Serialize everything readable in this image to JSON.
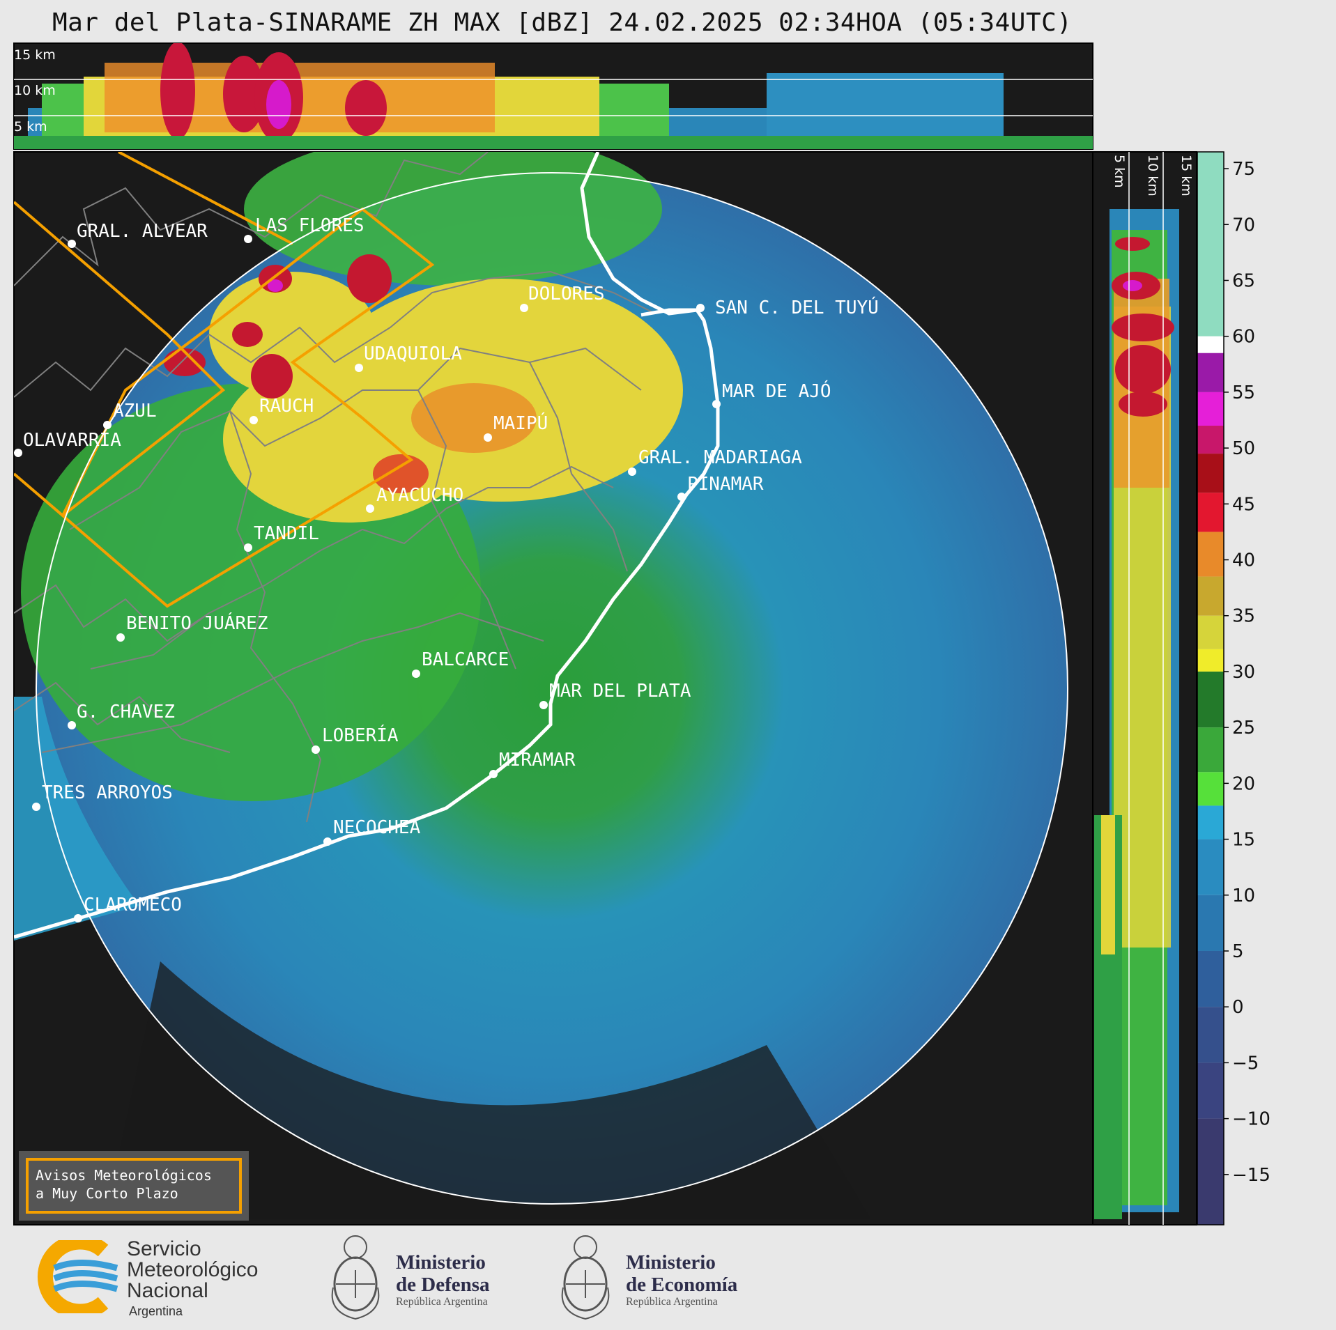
{
  "title": "Mar del Plata-SINARAME ZH MAX [dBZ] 24.02.2025 02:34HOA (05:34UTC)",
  "top_profile": {
    "height_labels": [
      "15 km",
      "10 km",
      "5 km"
    ]
  },
  "side_profile": {
    "height_labels": [
      "5 km",
      "10 km",
      "15 km"
    ]
  },
  "colorbar": {
    "ticks": [
      "75",
      "70",
      "65",
      "60",
      "55",
      "50",
      "45",
      "40",
      "35",
      "30",
      "25",
      "20",
      "15",
      "10",
      "5",
      "0",
      "−5",
      "−10",
      "−15"
    ]
  },
  "cities": [
    {
      "name": "GRAL. ALVEAR"
    },
    {
      "name": "LAS FLORES"
    },
    {
      "name": "DOLORES"
    },
    {
      "name": "SAN C. DEL TUYÚ"
    },
    {
      "name": "UDAQUIOLA"
    },
    {
      "name": "MAR DE AJÓ"
    },
    {
      "name": "AZUL"
    },
    {
      "name": "RAUCH"
    },
    {
      "name": "MAIPÚ"
    },
    {
      "name": "OLAVARRÍA"
    },
    {
      "name": "GRAL. MADARIAGA"
    },
    {
      "name": "PINAMAR"
    },
    {
      "name": "AYACUCHO"
    },
    {
      "name": "TANDIL"
    },
    {
      "name": "BENITO JUÁREZ"
    },
    {
      "name": "BALCARCE"
    },
    {
      "name": "MAR DEL PLATA"
    },
    {
      "name": "G. CHAVEZ"
    },
    {
      "name": "LOBERÍA"
    },
    {
      "name": "MIRAMAR"
    },
    {
      "name": "TRES ARROYOS"
    },
    {
      "name": "NECOCHEA"
    },
    {
      "name": "CLAROMECO"
    }
  ],
  "aviso": {
    "line1": "Avisos Meteorológicos",
    "line2": "a Muy Corto Plazo"
  },
  "footer": {
    "smn_line1": "Servicio",
    "smn_line2": "Meteorológico",
    "smn_line3": "Nacional",
    "smn_sub": "Argentina",
    "defensa_line1": "Ministerio",
    "defensa_line2": "de Defensa",
    "defensa_sub": "República Argentina",
    "economia_line1": "Ministerio",
    "economia_line2": "de Economía",
    "economia_sub": "República Argentina"
  },
  "colors": {
    "panel_bg": "#1a1a1a",
    "coast": "#ffffff",
    "warning_outline": "#f5a000",
    "district_lines": "#808080"
  }
}
